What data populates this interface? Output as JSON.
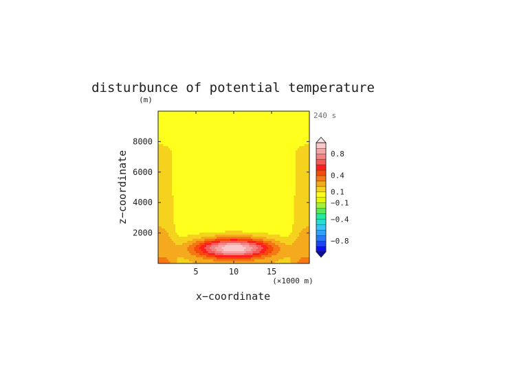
{
  "chart_data": {
    "type": "contour",
    "title": "disturbunce of potential temperature",
    "y_unit": "(m)",
    "time_label": "240 s",
    "xlabel": "x−coordinate",
    "ylabel": "z−coordinate",
    "x_unit": "(×1000 m)",
    "xlim": [
      0,
      20
    ],
    "ylim": [
      0,
      10000
    ],
    "x_ticks": [
      5,
      10,
      15
    ],
    "x_tick_labels": [
      "5",
      "10",
      "15"
    ],
    "y_ticks": [
      2000,
      4000,
      6000,
      8000
    ],
    "y_tick_labels": [
      "2000",
      "4000",
      "6000",
      "8000"
    ],
    "colorbar": {
      "levels": [
        -1.0,
        -0.9,
        -0.8,
        -0.7,
        -0.6,
        -0.5,
        -0.4,
        -0.3,
        -0.2,
        -0.1,
        0.0,
        0.1,
        0.2,
        0.3,
        0.4,
        0.5,
        0.6,
        0.7,
        0.8,
        0.9,
        1.0
      ],
      "colors": [
        "#1010e8",
        "#1e46f0",
        "#2a78f5",
        "#32a0f8",
        "#3cc3f5",
        "#28dcd2",
        "#28e6a0",
        "#5ae65a",
        "#a0f03c",
        "#e6f50a",
        "#ffff1e",
        "#f5d21e",
        "#f5aa1e",
        "#f57814",
        "#f54b0a",
        "#ff1e1e",
        "#f55a5a",
        "#f58282",
        "#f5a5a5",
        "#fac8c8"
      ],
      "tick_values": [
        0.8,
        0.4,
        0.1,
        -0.1,
        -0.4,
        -0.8
      ],
      "tick_labels": [
        "0.8",
        "0.4",
        "0.1",
        "−0.1",
        "−0.4",
        "−0.8"
      ],
      "extend": "both"
    },
    "field": {
      "shape": "warm bubble near surface centered at x=10 km, z=1000 m; warm side plumes near x=0 and x=20 km rising to about 8000 m",
      "bubble_center": [
        10,
        1000
      ],
      "bubble_max": 0.9
    }
  }
}
